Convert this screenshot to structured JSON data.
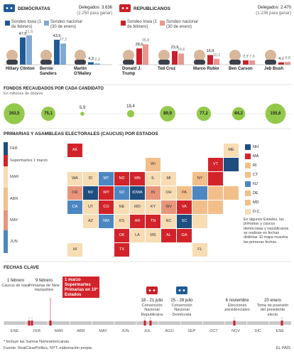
{
  "chart_data": [
    {
      "type": "bar",
      "title": "DEMÓCRATAS",
      "subtitle": "Delegados: 3.636",
      "note": "(2.250 para ganar)",
      "categories": [
        "Hillary Clinton",
        "Bernie Sanders",
        "Martin O'Malley"
      ],
      "series": [
        {
          "name": "Sondeo Iowa (1 de febrero)",
          "color": "#1f5a96",
          "values": [
            47.9,
            43.9,
            4.3
          ],
          "value_labels": [
            "47,9",
            "43,9",
            "4,3"
          ]
        },
        {
          "name": "Sondeo nacional (30 de enero)",
          "color": "#7fa9d3",
          "values": [
            51.6,
            37.2,
            2.2
          ],
          "value_labels": [
            "51,6",
            "37,2",
            "2,2"
          ]
        }
      ]
    },
    {
      "type": "bar",
      "title": "REPUBLICANOS",
      "subtitle": "Delegados: 2.470",
      "note": "(1.236 para ganar)",
      "categories": [
        "Donald J. Trump",
        "Ted Cruz",
        "Marco Rubio",
        "Ben Carson",
        "Jeb Bush"
      ],
      "series": [
        {
          "name": "Sondeo Iowa (1 de febrero)",
          "color": "#c8202a",
          "values": [
            28.6,
            23.9,
            16.9,
            7.7,
            4.1
          ],
          "value_labels": [
            "28,6",
            "23,9",
            "16,9",
            "7,7",
            "4,1"
          ]
        },
        {
          "name": "Sondeo nacional (30 de enero)",
          "color": "#e9968f",
          "values": [
            35.8,
            19.6,
            10.2,
            7.6,
            4.8
          ],
          "value_labels": [
            "35,8",
            "19,6",
            "10,2",
            "7,6",
            "4,8"
          ]
        }
      ]
    },
    {
      "type": "bubble",
      "title": "FONDOS RECAUDADOS POR CADA CANDIDATO",
      "subtitle": "En millones de dólares",
      "color": "#93c94b",
      "values": [
        163.5,
        75.1,
        5.9,
        19.4,
        89.9,
        77.2,
        64.2,
        155.6
      ],
      "value_labels": [
        "163,5",
        "75,1",
        "5,9",
        "19,4",
        "89,9",
        "77,2",
        "64,2",
        "155,6"
      ]
    }
  ],
  "map": {
    "title": "PRIMARIAS Y ASAMBLEAS ELECTORALES (CAUCUS) POR ESTADOS",
    "legend": [
      {
        "label": "FEB",
        "color": "#1f4e80"
      },
      {
        "label": "Supermartes 1 marzo",
        "color": "#d2232a"
      },
      {
        "label": "MAR",
        "color": "#f7dcb4"
      },
      {
        "label": "ABR",
        "color": "#f2bf8a"
      },
      {
        "label": "MAY",
        "color": "#e8957a"
      },
      {
        "label": "JUN",
        "color": "#4c87c1"
      }
    ],
    "states": [
      {
        "label": "AK",
        "color": "#d2232a"
      },
      {
        "label": "ME",
        "color": "#f7dcb4"
      },
      {
        "label": "WI",
        "color": "#f2bf8a"
      },
      {
        "label": "VT",
        "color": "#d2232a"
      },
      {
        "label": "WA",
        "color": "#f7dcb4"
      },
      {
        "label": "ID",
        "color": "#f7dcb4"
      },
      {
        "label": "MT",
        "color": "#4c87c1"
      },
      {
        "label": "ND",
        "color": "#d2232a"
      },
      {
        "label": "MN",
        "color": "#d2232a"
      },
      {
        "label": "IL",
        "color": "#f7dcb4"
      },
      {
        "label": "MI",
        "color": "#f7dcb4"
      },
      {
        "label": "NY",
        "color": "#f2bf8a"
      },
      {
        "label": "OR",
        "color": "#e8957a"
      },
      {
        "label": "NV",
        "color": "#1f4e80"
      },
      {
        "label": "WY",
        "color": "#d2232a"
      },
      {
        "label": "SD",
        "color": "#4c87c1"
      },
      {
        "label": "IOWA",
        "color": "#1f4e80"
      },
      {
        "label": "IN",
        "color": "#e8957a"
      },
      {
        "label": "OH",
        "color": "#f7dcb4"
      },
      {
        "label": "PA",
        "color": "#f2bf8a"
      },
      {
        "label": "CA",
        "color": "#4c87c1"
      },
      {
        "label": "UT",
        "color": "#f7dcb4"
      },
      {
        "label": "CO",
        "color": "#d2232a"
      },
      {
        "label": "NE",
        "color": "#f7dcb4"
      },
      {
        "label": "MO",
        "color": "#f7dcb4"
      },
      {
        "label": "KY",
        "color": "#f7dcb4"
      },
      {
        "label": "WV",
        "color": "#e8957a"
      },
      {
        "label": "VA",
        "color": "#d2232a"
      },
      {
        "label": "AZ",
        "color": "#f7dcb4"
      },
      {
        "label": "NM",
        "color": "#4c87c1"
      },
      {
        "label": "KS",
        "color": "#f7dcb4"
      },
      {
        "label": "AR",
        "color": "#d2232a"
      },
      {
        "label": "TN",
        "color": "#d2232a"
      },
      {
        "label": "NC",
        "color": "#f7dcb4"
      },
      {
        "label": "SC",
        "color": "#1f4e80"
      },
      {
        "label": "OK",
        "color": "#d2232a"
      },
      {
        "label": "LA",
        "color": "#f7dcb4"
      },
      {
        "label": "MS",
        "color": "#f7dcb4"
      },
      {
        "label": "AL",
        "color": "#d2232a"
      },
      {
        "label": "GA",
        "color": "#d2232a"
      },
      {
        "label": "HI",
        "color": "#f7dcb4"
      },
      {
        "label": "TX",
        "color": "#d2232a"
      },
      {
        "label": "FL",
        "color": "#f7dcb4"
      }
    ],
    "small_states": [
      {
        "label": "NH",
        "color": "#1f4e80"
      },
      {
        "label": "MA",
        "color": "#d2232a"
      },
      {
        "label": "RI",
        "color": "#f2bf8a"
      },
      {
        "label": "CT",
        "color": "#f2bf8a"
      },
      {
        "label": "NJ",
        "color": "#4c87c1"
      },
      {
        "label": "DE",
        "color": "#f2bf8a"
      },
      {
        "label": "MD",
        "color": "#f2bf8a"
      },
      {
        "label": "D.C.",
        "color": "#f7dcb4"
      }
    ],
    "note": "En algunos Estados, las primarias y caucus demócratas y republicanos se realizan en fechas distintas. El mapa muestra las primeras fechas."
  },
  "timeline": {
    "title": "FECHAS CLAVE",
    "months": [
      "ENE",
      "FEB",
      "MAR",
      "ABR",
      "MAY",
      "JUN",
      "JUL",
      "AGO",
      "SEP",
      "OCT",
      "NOV",
      "DIC",
      "ENE"
    ],
    "events": [
      {
        "date": "1 febrero",
        "text": "Caucus de Iowa"
      },
      {
        "date": "9 febrero",
        "text": "Primarias de New Hampshire"
      },
      {
        "date": "1 marzo",
        "text": "Supermartes Primarias en 10* Estados"
      },
      {
        "date": "18 - 21 julio",
        "text": "Convención Nacional Republicana"
      },
      {
        "date": "25 - 28 julio",
        "text": "Convención Nacional Demócrata"
      },
      {
        "date": "8 noviembre",
        "text": "Elecciones presidenciales"
      },
      {
        "date": "20 enero",
        "text": "Toma de posesión del presidente electo"
      }
    ]
  },
  "footer": {
    "footnote": "* Incluye las Samoa Norteamericanas.",
    "source": "Fuente: RealClearPolitics, NYT, elaboración propia.",
    "brand": "EL PAÍS"
  }
}
